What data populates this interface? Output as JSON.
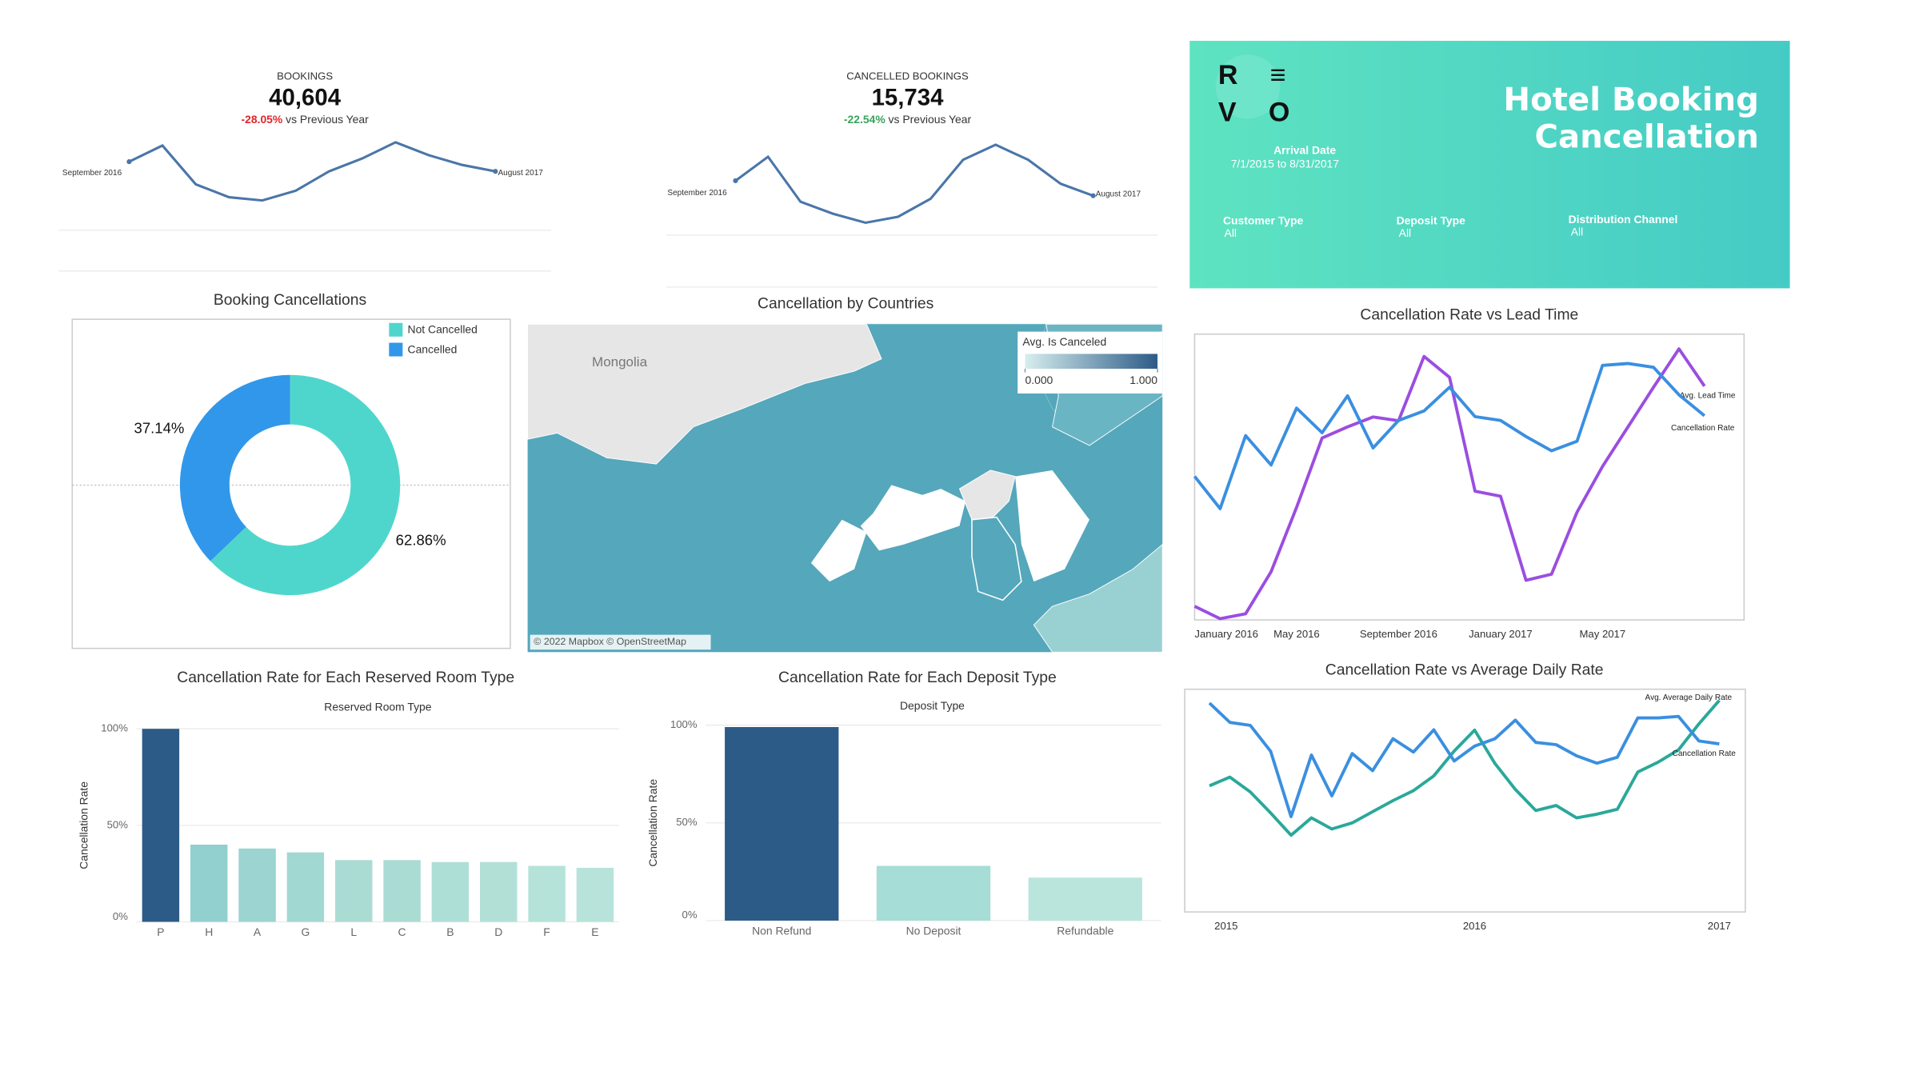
{
  "panel": {
    "logo_rows": [
      "R ≡",
      "V O"
    ],
    "title_lines": [
      "Hotel Booking",
      "Cancellation"
    ],
    "filters": [
      {
        "label": "Arrival Date",
        "value": "7/1/2015 to 8/31/2017"
      },
      {
        "label": "Customer Type",
        "value": "All"
      },
      {
        "label": "Deposit Type",
        "value": "All"
      },
      {
        "label": "Distribution Channel",
        "value": "All"
      }
    ]
  },
  "chart_data": [
    {
      "type": "kpi",
      "title": "BOOKINGS",
      "value": "40,604",
      "change": "-28.05%",
      "change_text": "vs Previous Year",
      "change_color": "#e0262b",
      "start_label": "September 2016",
      "end_label": "August 2017",
      "color": "#4a76a8",
      "values": [
        3400,
        3900,
        2700,
        2300,
        2200,
        2500,
        3100,
        3500,
        4000,
        3600,
        3300,
        3100
      ]
    },
    {
      "type": "kpi",
      "title": "CANCELLED BOOKINGS",
      "value": "15,734",
      "change": "-22.54%",
      "change_text": "vs Previous Year",
      "change_color": "#3aa35a",
      "start_label": "September 2016",
      "end_label": "August 2017",
      "color": "#4a76a8",
      "values": [
        1400,
        1800,
        1050,
        850,
        700,
        800,
        1100,
        1750,
        2000,
        1750,
        1350,
        1150
      ]
    },
    {
      "type": "pie",
      "title": "Booking Cancellations",
      "categories": [
        "Not Cancelled",
        "Cancelled"
      ],
      "values": [
        62.86,
        37.14
      ],
      "value_labels": [
        "62.86%",
        "37.14%"
      ],
      "colors": [
        "#4fd6cc",
        "#3197ea"
      ]
    },
    {
      "type": "map",
      "title": "Cancellation by Countries",
      "place_label": "Mongolia",
      "attribution": "© 2022 Mapbox © OpenStreetMap",
      "legend_title": "Avg. Is Canceled",
      "legend_colors": [
        "#d6eeee",
        "#2d5b87"
      ],
      "legend_ticks": [
        {
          "value": 0,
          "label": "0.000"
        },
        {
          "value": 1,
          "label": "1.000"
        }
      ]
    },
    {
      "type": "dual_line",
      "title": "Cancellation Rate vs Lead Time",
      "categories": [
        "January 2016",
        null,
        null,
        null,
        "May 2016",
        null,
        null,
        null,
        "September 2016",
        null,
        null,
        null,
        "January 2017",
        null,
        null,
        null,
        "May 2017",
        null,
        null,
        null,
        null
      ],
      "ylim": [
        20,
        50
      ],
      "y2lim": [
        0,
        250
      ],
      "series": [
        {
          "name": "Avg. Lead Time",
          "color": "#9b4de0",
          "axis": "y2",
          "values": [
            10.9,
            0,
            4.3,
            41.3,
            97.8,
            158.7,
            168.5,
            177.2,
            173.9,
            230.4,
            212,
            112,
            107.6,
            33.7,
            39.1,
            93.5,
            133.7,
            168.5,
            203.3,
            237,
            204.3
          ]
        },
        {
          "name": "Cancellation Rate",
          "color": "#3a8fe0",
          "values": [
            35.0,
            31.6,
            39.3,
            36.2,
            42.2,
            39.6,
            43.5,
            38.0,
            40.9,
            41.9,
            44.4,
            41.3,
            40.9,
            39.2,
            37.7,
            38.7,
            46.7,
            46.9,
            46.5,
            43.6,
            41.4
          ]
        }
      ]
    },
    {
      "type": "dual_line",
      "title": "Cancellation Rate vs Average Daily Rate",
      "categories": [
        "2015",
        null,
        null,
        null,
        null,
        null,
        null,
        null,
        null,
        null,
        null,
        null,
        null,
        "2016",
        null,
        null,
        null,
        null,
        null,
        null,
        null,
        null,
        null,
        null,
        null,
        "2017"
      ],
      "ylim": [
        20,
        50
      ],
      "y2lim": [
        0,
        200
      ],
      "series": [
        {
          "name": "Avg. Average Daily Rate",
          "color": "#2aa89a",
          "axis": "y2",
          "values": [
            114.4,
            122.2,
            108.9,
            90,
            70,
            85.6,
            75.6,
            81.1,
            91.1,
            101.1,
            110,
            123.3,
            145.6,
            164.4,
            134.4,
            111.1,
            92.2,
            96.7,
            85.6,
            88.9,
            93.3,
            126.7,
            135.6,
            146.7,
            170,
            191.1
          ]
        },
        {
          "name": "Cancellation Rate",
          "color": "#3a8fe0",
          "values": [
            48.3,
            45.7,
            45.3,
            41.8,
            33.0,
            41.3,
            35.8,
            41.5,
            39.2,
            43.5,
            41.7,
            44.7,
            40.5,
            42.5,
            43.5,
            46.0,
            43.0,
            42.7,
            41.2,
            40.2,
            41.0,
            46.3,
            46.3,
            46.5,
            43.2,
            42.8
          ]
        }
      ]
    },
    {
      "type": "bar",
      "title": "Cancellation Rate for Each Reserved Room Type",
      "x_label": "Reserved Room Type",
      "y_label": "Cancellation Rate",
      "categories": [
        "P",
        "H",
        "A",
        "G",
        "L",
        "C",
        "B",
        "D",
        "F",
        "E"
      ],
      "values": [
        100,
        40,
        38,
        36,
        32,
        32,
        31,
        31,
        29,
        28
      ],
      "colors": [
        "#2d5b87",
        "#92d0cf",
        "#9bd4d1",
        "#a2d8d2",
        "#aadcd4",
        "#aadcd4",
        "#aedfd6",
        "#b2e0d7",
        "#b5e2d9",
        "#b8e3da"
      ],
      "ylim": [
        0,
        100
      ],
      "yticks": [
        {
          "value": 0,
          "label": "0%"
        },
        {
          "value": 50,
          "label": "50%"
        },
        {
          "value": 100,
          "label": "100%"
        }
      ],
      "grid": true
    },
    {
      "type": "bar",
      "title": "Cancellation Rate for Each Deposit Type",
      "x_label": "Deposit Type",
      "y_label": "Cancellation Rate",
      "categories": [
        "Non Refund",
        "No Deposit",
        "Refundable"
      ],
      "values": [
        99,
        28,
        22
      ],
      "colors": [
        "#2d5b87",
        "#a6ddd6",
        "#b9e5dc"
      ],
      "ylim": [
        0,
        100
      ],
      "yticks": [
        {
          "value": 0,
          "label": "0%"
        },
        {
          "value": 50,
          "label": "50%"
        },
        {
          "value": 100,
          "label": "100%"
        }
      ],
      "grid": true
    }
  ]
}
